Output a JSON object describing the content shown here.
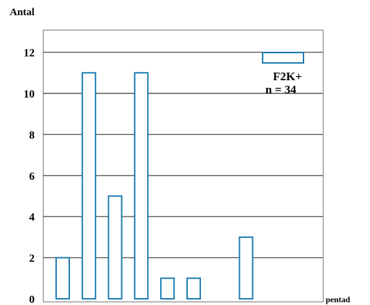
{
  "chart_data": {
    "type": "bar",
    "ylabel": "Antal",
    "xlabel": "pentad",
    "ylim": [
      0,
      12.6
    ],
    "yticks": [
      0,
      2,
      4,
      6,
      8,
      10,
      12
    ],
    "grid": "horizontal",
    "bar_color": "#1a7ab0",
    "values": [
      2,
      11,
      5,
      11,
      1,
      1,
      0,
      3
    ],
    "legend": {
      "placement": "top-right",
      "series": "F2K+",
      "count_label": "n = 34"
    }
  }
}
